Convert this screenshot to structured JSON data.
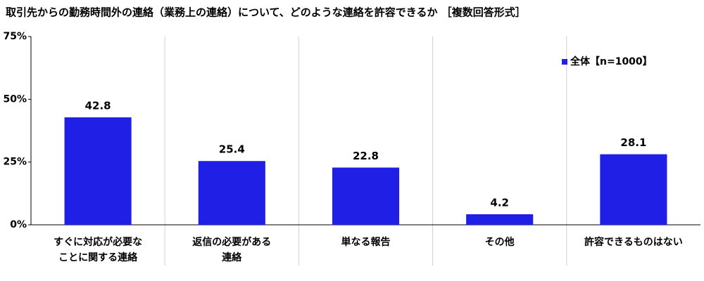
{
  "chart_data": {
    "type": "bar",
    "title": "取引先からの勤務時間外の連絡（業務上の連絡）について、どのような連絡を許容できるか ［複数回答形式］",
    "categories": [
      "すぐに対応が必要な\nことに関する連絡",
      "返信の必要がある\n連絡",
      "単なる報告",
      "その他",
      "許容できるものはない"
    ],
    "series": [
      {
        "name": "全体【n=1000】",
        "color": "#1f1fe6",
        "values": [
          42.8,
          25.4,
          22.8,
          4.2,
          28.1
        ]
      }
    ],
    "ylim": [
      0,
      75
    ],
    "yticks": [
      {
        "value": 0,
        "label": "0%"
      },
      {
        "value": 25,
        "label": "25%"
      },
      {
        "value": 50,
        "label": "50%"
      },
      {
        "value": 75,
        "label": "75%"
      }
    ],
    "legend": "upper right"
  }
}
